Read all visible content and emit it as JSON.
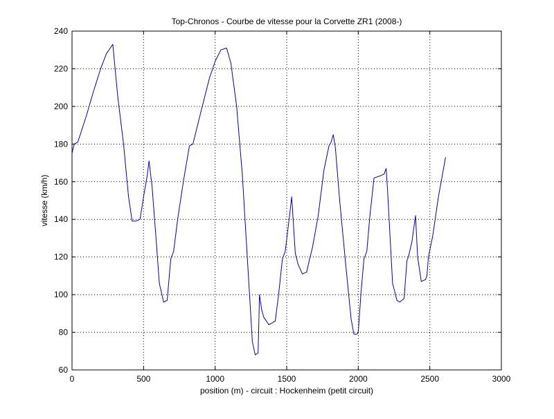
{
  "chart_data": {
    "type": "line",
    "title": "Top-Chronos - Courbe de vitesse pour la Corvette ZR1 (2008-)",
    "xlabel": "position (m) - circuit : Hockenheim (petit circuit)",
    "ylabel": "vitesse (km/h)",
    "xlim": [
      0,
      3000
    ],
    "ylim": [
      60,
      240
    ],
    "xticks": [
      0,
      500,
      1000,
      1500,
      2000,
      2500,
      3000
    ],
    "yticks": [
      60,
      80,
      100,
      120,
      140,
      160,
      180,
      200,
      220,
      240
    ],
    "grid": true,
    "line_color": "#0000b4",
    "series": [
      {
        "x": [
          0,
          15,
          40,
          100,
          150,
          200,
          240,
          285,
          320,
          360,
          395,
          420,
          445,
          475,
          500,
          525,
          538,
          560,
          585,
          610,
          640,
          665,
          690,
          710,
          740,
          780,
          820,
          845,
          900,
          960,
          1000,
          1040,
          1080,
          1110,
          1150,
          1190,
          1230,
          1260,
          1280,
          1300,
          1310,
          1325,
          1340,
          1375,
          1400,
          1420,
          1445,
          1470,
          1490,
          1520,
          1535,
          1560,
          1580,
          1610,
          1640,
          1660,
          1680,
          1720,
          1760,
          1795,
          1810,
          1825,
          1840,
          1870,
          1910,
          1950,
          1970,
          1990,
          2000,
          2020,
          2040,
          2060,
          2080,
          2110,
          2150,
          2180,
          2195,
          2205,
          2240,
          2270,
          2290,
          2320,
          2340,
          2350,
          2375,
          2400,
          2415,
          2440,
          2470,
          2480,
          2490,
          2520,
          2560,
          2610
        ],
        "y": [
          175,
          180,
          181,
          195,
          208,
          220,
          228,
          233,
          205,
          180,
          152,
          139,
          139,
          140,
          152,
          163,
          171,
          157,
          132,
          106,
          96,
          97,
          119,
          123,
          141,
          161,
          179,
          180,
          197,
          215,
          224,
          230,
          231,
          223,
          200,
          164,
          113,
          75,
          68,
          69,
          100,
          92,
          88,
          84,
          85,
          86,
          101,
          119,
          123,
          142,
          152,
          122,
          116,
          111,
          112,
          119,
          125,
          142,
          166,
          179,
          181,
          185,
          178,
          150,
          118,
          87,
          79,
          79,
          80,
          102,
          119,
          123,
          141,
          162,
          163,
          164,
          167,
          155,
          106,
          97,
          96,
          98,
          118,
          120,
          128,
          142,
          120,
          107,
          108,
          110,
          120,
          131,
          152,
          173
        ]
      }
    ]
  }
}
